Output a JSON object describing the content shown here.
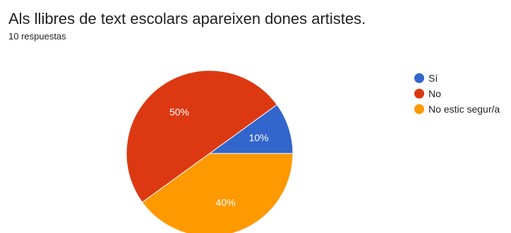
{
  "header": {
    "question": "Als llibres de text escolars apareixen dones artistes.",
    "responses": "10 respuestas"
  },
  "chart_data": {
    "type": "pie",
    "title": "Als llibres de text escolars apareixen dones artistes.",
    "categories": [
      "Sí",
      "No",
      "No estic segur/a"
    ],
    "values": [
      10,
      50,
      40
    ],
    "value_labels": [
      "10%",
      "50%",
      "40%"
    ],
    "colors": [
      "#3366cc",
      "#dc3912",
      "#ff9900"
    ],
    "legend_position": "right"
  }
}
